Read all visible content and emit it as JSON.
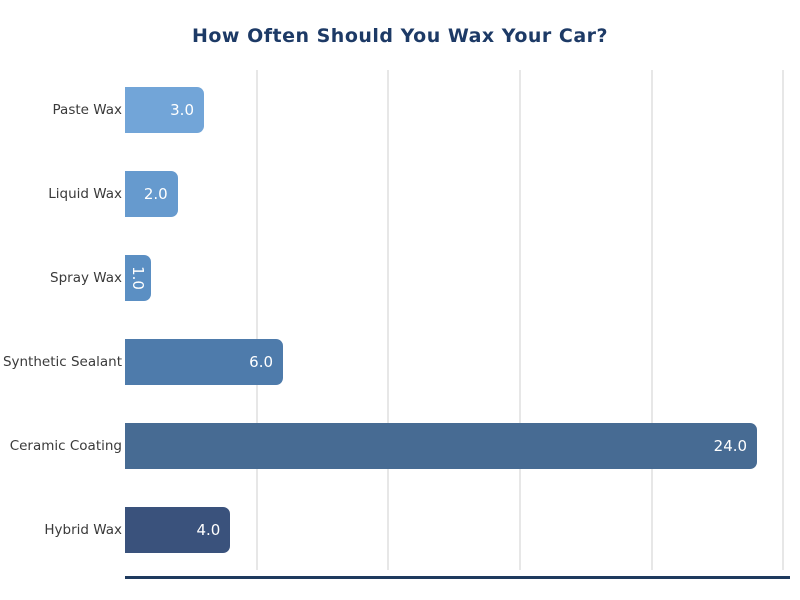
{
  "chart_data": {
    "type": "bar",
    "orientation": "horizontal",
    "title": "How Often Should You Wax Your Car?",
    "categories": [
      "Paste Wax",
      "Liquid Wax",
      "Spray Wax",
      "Synthetic Sealant",
      "Ceramic Coating",
      "Hybrid Wax"
    ],
    "values": [
      3.0,
      2.0,
      1.0,
      6.0,
      24.0,
      4.0
    ],
    "value_labels": [
      "3.0",
      "2.0",
      "1.0",
      "6.0",
      "24.0",
      "4.0"
    ],
    "bar_colors": [
      "#72a5d8",
      "#669ace",
      "#5b8fc3",
      "#4e7bab",
      "#476b93",
      "#3a527c"
    ],
    "xlabel": "",
    "ylabel": "",
    "xlim": [
      0,
      25.25
    ],
    "grid_ticks": [
      5,
      10,
      15,
      20,
      25
    ],
    "grid": true,
    "legend": false,
    "tick_labels_shown": false,
    "colors": {
      "title": "#1d3a66",
      "axis_line": "#1e3a5e",
      "gridline": "#e7e7e7",
      "category_label": "#3a3a3a",
      "value_text": "#ffffff",
      "background": "#ffffff"
    }
  }
}
